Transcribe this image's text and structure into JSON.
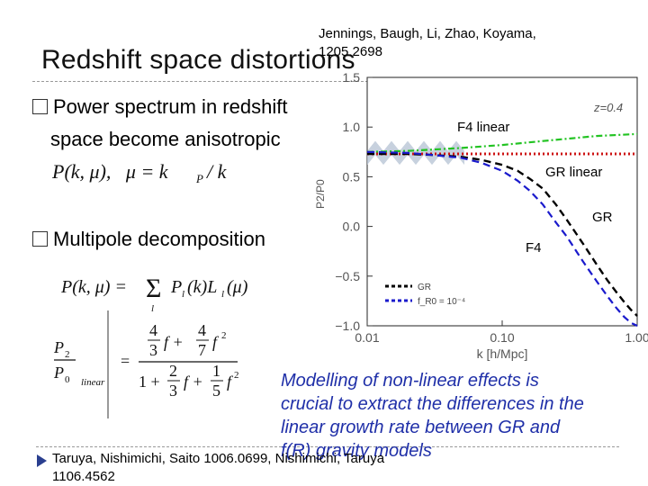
{
  "slide": {
    "title": "Redshift space distortions",
    "authors_line1": "Jennings, Baugh, Li, Zhao, Koyama,",
    "authors_line2": "1205.2698",
    "bullets": [
      {
        "line1": "Power spectrum in redshift",
        "line2": "space become anisotropic"
      },
      {
        "line1": "Multipole decomposition"
      }
    ],
    "caption": [
      "Modelling of non-linear effects is",
      "crucial to extract the differences in the",
      "linear growth rate between GR and",
      "f(R) gravity models"
    ],
    "reference_line1": "Taruya, Nishimichi, Saito 1006.0699, Nishimichi, Taruya",
    "reference_line2": "1106.4562",
    "colors": {
      "caption": "#1f2fa8",
      "gr_linear": "#cc1111",
      "f4_linear": "#22c322",
      "gr": "#000000",
      "f4": "#1a1acc"
    }
  },
  "equations": {
    "eq1": "P(k, μ),   μ = k_P / k",
    "eq2": "P(k, μ) = Σ_l P_l(k) L_l(μ)",
    "eq3_lhs": "P2/P0 |linear",
    "eq3_num": "4/3 f + 4/7 f²",
    "eq3_den": "1 + 2/3 f + 1/5 f²"
  },
  "chart_data": {
    "type": "line",
    "xscale": "log",
    "xlim": [
      0.01,
      1.0
    ],
    "ylim": [
      -1.0,
      1.5
    ],
    "xlabel": "k [h/Mpc]",
    "ylabel": "P2/P0",
    "x_ticks": [
      "0.01",
      "0.10",
      "1.00"
    ],
    "y_ticks": [
      "1.5",
      "1.0",
      "0.5",
      "0.0",
      "−0.5",
      "−1.0"
    ],
    "corner_label": "z=0.4",
    "legend": [
      {
        "label": "GR",
        "style": "black dashed"
      },
      {
        "label": "f_R0 = 10⁻⁴",
        "style": "blue dashed"
      }
    ],
    "annotations": [
      "F4 linear",
      "GR linear",
      "GR",
      "F4"
    ],
    "series": [
      {
        "name": "F4 linear",
        "x": [
          0.01,
          0.02,
          0.05,
          0.1,
          0.2,
          0.5,
          1.0
        ],
        "y": [
          0.75,
          0.76,
          0.79,
          0.82,
          0.86,
          0.91,
          0.93
        ]
      },
      {
        "name": "GR linear",
        "x": [
          0.01,
          1.0
        ],
        "y": [
          0.73,
          0.73
        ]
      },
      {
        "name": "GR",
        "x": [
          0.01,
          0.02,
          0.03,
          0.05,
          0.07,
          0.1,
          0.13,
          0.16,
          0.2,
          0.25,
          0.3,
          0.4,
          0.5,
          0.6,
          0.7,
          0.8,
          0.9,
          1.0
        ],
        "y": [
          0.73,
          0.73,
          0.72,
          0.7,
          0.67,
          0.62,
          0.56,
          0.48,
          0.38,
          0.22,
          0.07,
          -0.18,
          -0.38,
          -0.54,
          -0.66,
          -0.76,
          -0.84,
          -0.9
        ]
      },
      {
        "name": "F4",
        "x": [
          0.01,
          0.02,
          0.03,
          0.05,
          0.07,
          0.1,
          0.13,
          0.16,
          0.2,
          0.25,
          0.3,
          0.4,
          0.5,
          0.6,
          0.7,
          0.8,
          0.9,
          1.0
        ],
        "y": [
          0.75,
          0.74,
          0.72,
          0.69,
          0.64,
          0.56,
          0.46,
          0.36,
          0.22,
          0.04,
          -0.1,
          -0.36,
          -0.55,
          -0.7,
          -0.82,
          -0.91,
          -0.97,
          -1.0
        ]
      }
    ]
  }
}
